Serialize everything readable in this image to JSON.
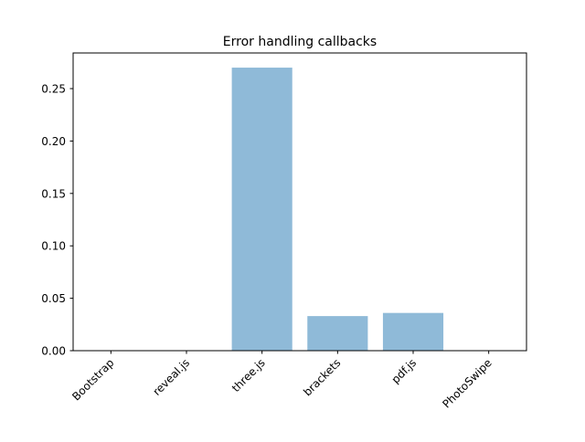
{
  "chart_data": {
    "type": "bar",
    "title": "Error handling callbacks",
    "xlabel": "",
    "ylabel": "",
    "categories": [
      "Bootstrap",
      "reveal.js",
      "three.js",
      "brackets",
      "pdf.js",
      "PhotoSwipe"
    ],
    "values": [
      0.0,
      0.0,
      0.27,
      0.033,
      0.036,
      0.0
    ],
    "ylim": [
      0,
      0.284
    ],
    "yticks": [
      0.0,
      0.05,
      0.1,
      0.15,
      0.2,
      0.25
    ],
    "ytick_labels": [
      "0.00",
      "0.05",
      "0.10",
      "0.15",
      "0.20",
      "0.25"
    ],
    "grid": false,
    "legend": "none",
    "bar_color": "#8fbad8",
    "axis_color": "#000000"
  }
}
